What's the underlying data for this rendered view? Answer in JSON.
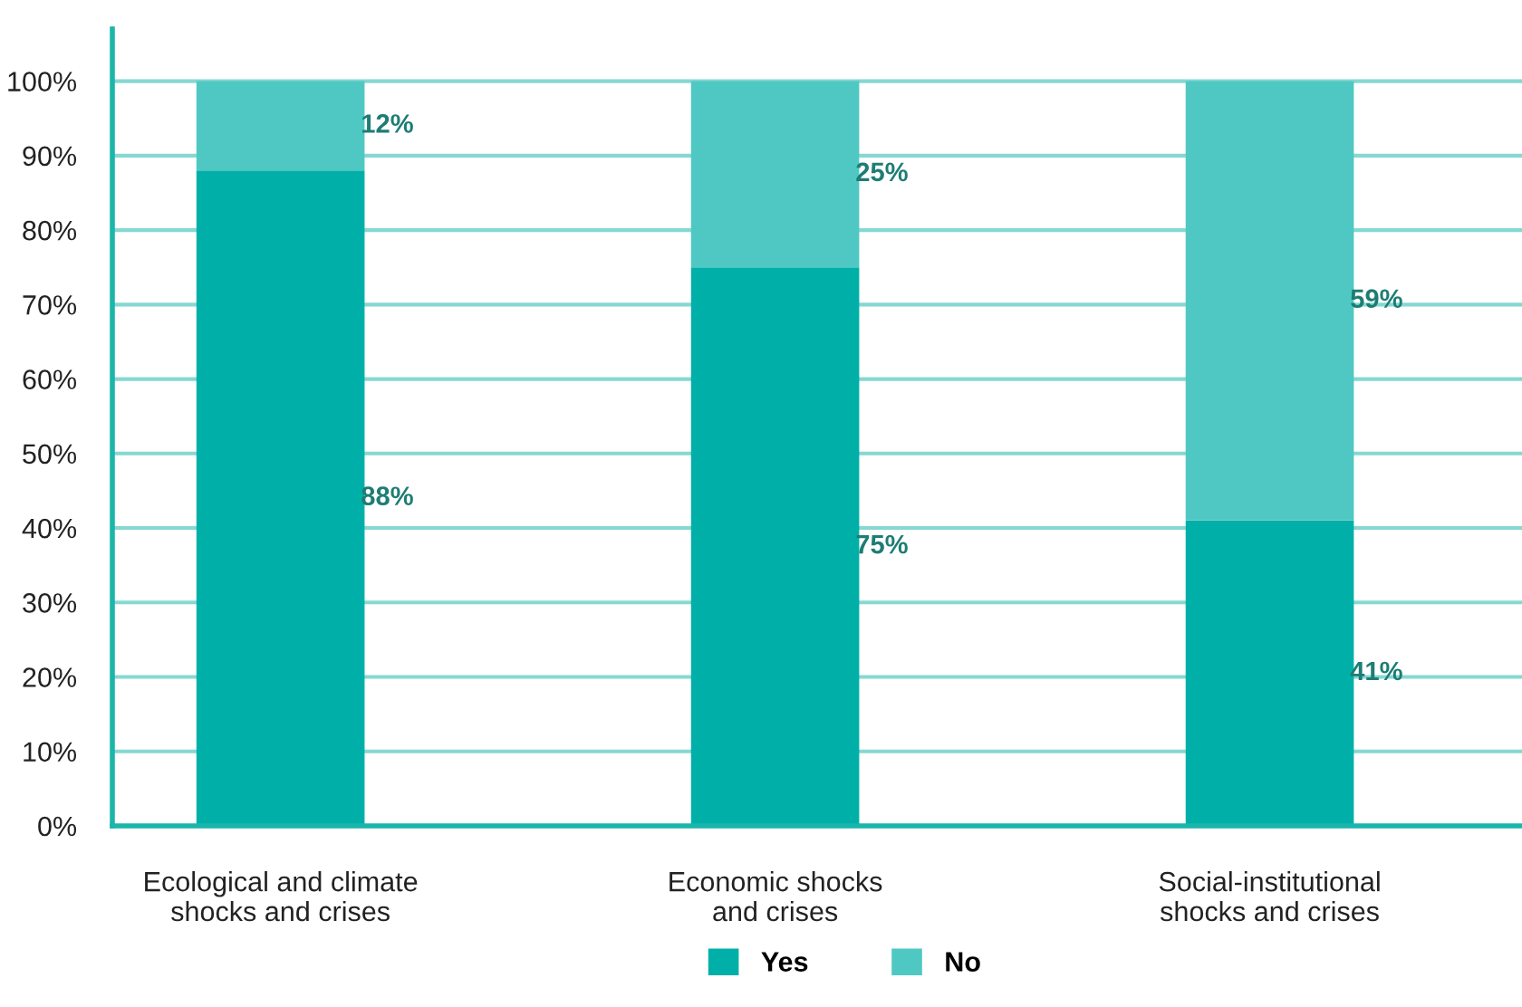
{
  "chart_data": {
    "type": "bar",
    "stacked": true,
    "categories": [
      "Ecological and climate\nshocks and crises",
      "Economic shocks\nand crises",
      "Social-institutional\nshocks and crises"
    ],
    "series": [
      {
        "name": "Yes",
        "color": "#00b0a8",
        "values": [
          88,
          75,
          41
        ],
        "value_labels": [
          "88%",
          "75%",
          "41%"
        ]
      },
      {
        "name": "No",
        "color": "#4fc8c3",
        "values": [
          12,
          25,
          59
        ],
        "value_labels": [
          "12%",
          "25%",
          "59%"
        ]
      }
    ],
    "ylim": [
      0,
      107
    ],
    "yticks": [
      {
        "value": 0,
        "label": "0%"
      },
      {
        "value": 10,
        "label": "10%"
      },
      {
        "value": 20,
        "label": "20%"
      },
      {
        "value": 30,
        "label": "30%"
      },
      {
        "value": 40,
        "label": "40%"
      },
      {
        "value": 50,
        "label": "50%"
      },
      {
        "value": 60,
        "label": "60%"
      },
      {
        "value": 70,
        "label": "70%"
      },
      {
        "value": 80,
        "label": "80%"
      },
      {
        "value": 90,
        "label": "90%"
      },
      {
        "value": 100,
        "label": "100%"
      }
    ],
    "grid": "y",
    "legend": "bottom"
  }
}
